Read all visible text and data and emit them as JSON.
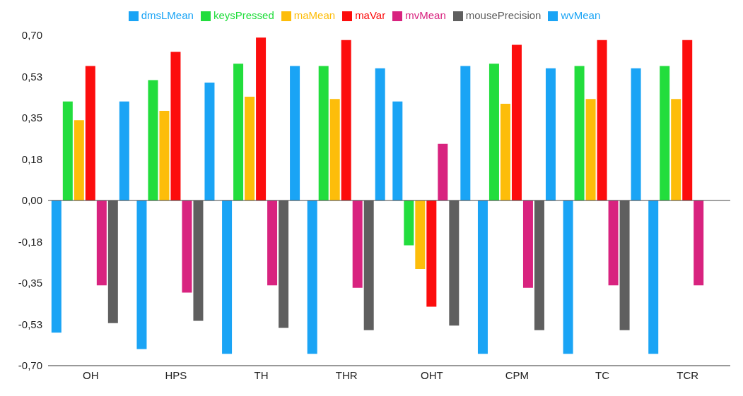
{
  "chart_data": {
    "type": "bar",
    "categories": [
      "OH",
      "HPS",
      "TH",
      "THR",
      "OHT",
      "CPM",
      "TC",
      "TCR"
    ],
    "series": [
      {
        "name": "dmsLMean",
        "color": "#1aa4f5",
        "values": [
          -0.56,
          -0.63,
          -0.65,
          -0.65,
          0.42,
          -0.65,
          -0.65,
          -0.65
        ]
      },
      {
        "name": "keysPressed",
        "color": "#22dd3d",
        "values": [
          0.42,
          0.51,
          0.58,
          0.57,
          -0.19,
          0.58,
          0.57,
          0.57
        ]
      },
      {
        "name": "maMean",
        "color": "#fdbd0a",
        "values": [
          0.34,
          0.38,
          0.44,
          0.43,
          -0.29,
          0.41,
          0.43,
          0.43
        ]
      },
      {
        "name": "maVar",
        "color": "#fc0d0d",
        "values": [
          0.57,
          0.63,
          0.69,
          0.68,
          -0.45,
          0.66,
          0.68,
          0.68
        ]
      },
      {
        "name": "mvMean",
        "color": "#d8237f",
        "values": [
          -0.36,
          -0.39,
          -0.36,
          -0.37,
          0.24,
          -0.37,
          -0.36,
          -0.36
        ]
      },
      {
        "name": "mousePrecision",
        "color": "#5f5f5f",
        "values": [
          -0.52,
          -0.51,
          -0.54,
          -0.55,
          -0.53,
          -0.55,
          -0.55,
          null
        ]
      },
      {
        "name": "wvMean",
        "color": "#1aa4f5",
        "values": [
          0.42,
          0.5,
          0.57,
          0.56,
          0.57,
          0.56,
          0.56,
          null
        ]
      }
    ],
    "ylim": [
      -0.7,
      0.7
    ],
    "yticks": [
      {
        "value": -0.7,
        "label": "-0,70"
      },
      {
        "value": -0.525,
        "label": "-0,53"
      },
      {
        "value": -0.35,
        "label": "-0,35"
      },
      {
        "value": -0.175,
        "label": "-0,18"
      },
      {
        "value": 0,
        "label": "0,00"
      },
      {
        "value": 0.175,
        "label": "0,18"
      },
      {
        "value": 0.35,
        "label": "0,35"
      },
      {
        "value": 0.525,
        "label": "0,53"
      },
      {
        "value": 0.7,
        "label": "0,70"
      }
    ],
    "ref_lines": [
      {
        "axis": "y",
        "value": 0
      }
    ],
    "grid": false,
    "legend": "top"
  }
}
